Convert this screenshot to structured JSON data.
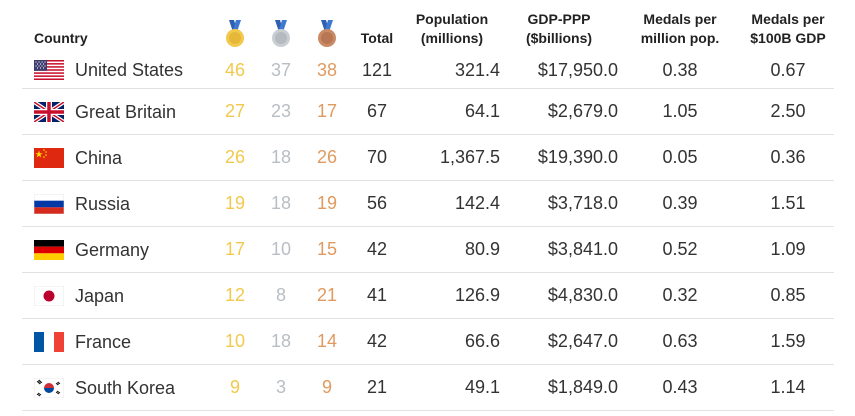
{
  "headers": {
    "country": "Country",
    "gold_icon": "gold-medal-icon",
    "silver_icon": "silver-medal-icon",
    "bronze_icon": "bronze-medal-icon",
    "total": "Total",
    "population_line1": "Population",
    "population_line2": "(millions)",
    "gdp_line1": "GDP-PPP",
    "gdp_line2": "($billions)",
    "medals_pop_line1": "Medals per",
    "medals_pop_line2": "million pop.",
    "medals_gdp_line1": "Medals per",
    "medals_gdp_line2": "$100B GDP"
  },
  "colors": {
    "gold": "#f2c94c",
    "silver": "#b8bec4",
    "bronze": "#e09a5f"
  },
  "rows": [
    {
      "country": "United States",
      "flag": "us-flag-icon",
      "gold": "46",
      "silver": "37",
      "bronze": "38",
      "total": "121",
      "population": "321.4",
      "gdp": "$17,950.0",
      "per_pop": "0.38",
      "per_gdp": "0.67"
    },
    {
      "country": "Great Britain",
      "flag": "gb-flag-icon",
      "gold": "27",
      "silver": "23",
      "bronze": "17",
      "total": "67",
      "population": "64.1",
      "gdp": "$2,679.0",
      "per_pop": "1.05",
      "per_gdp": "2.50"
    },
    {
      "country": "China",
      "flag": "cn-flag-icon",
      "gold": "26",
      "silver": "18",
      "bronze": "26",
      "total": "70",
      "population": "1,367.5",
      "gdp": "$19,390.0",
      "per_pop": "0.05",
      "per_gdp": "0.36"
    },
    {
      "country": "Russia",
      "flag": "ru-flag-icon",
      "gold": "19",
      "silver": "18",
      "bronze": "19",
      "total": "56",
      "population": "142.4",
      "gdp": "$3,718.0",
      "per_pop": "0.39",
      "per_gdp": "1.51"
    },
    {
      "country": "Germany",
      "flag": "de-flag-icon",
      "gold": "17",
      "silver": "10",
      "bronze": "15",
      "total": "42",
      "population": "80.9",
      "gdp": "$3,841.0",
      "per_pop": "0.52",
      "per_gdp": "1.09"
    },
    {
      "country": "Japan",
      "flag": "jp-flag-icon",
      "gold": "12",
      "silver": "8",
      "bronze": "21",
      "total": "41",
      "population": "126.9",
      "gdp": "$4,830.0",
      "per_pop": "0.32",
      "per_gdp": "0.85"
    },
    {
      "country": "France",
      "flag": "fr-flag-icon",
      "gold": "10",
      "silver": "18",
      "bronze": "14",
      "total": "42",
      "population": "66.6",
      "gdp": "$2,647.0",
      "per_pop": "0.63",
      "per_gdp": "1.59"
    },
    {
      "country": "South Korea",
      "flag": "kr-flag-icon",
      "gold": "9",
      "silver": "3",
      "bronze": "9",
      "total": "21",
      "population": "49.1",
      "gdp": "$1,849.0",
      "per_pop": "0.43",
      "per_gdp": "1.14"
    }
  ]
}
